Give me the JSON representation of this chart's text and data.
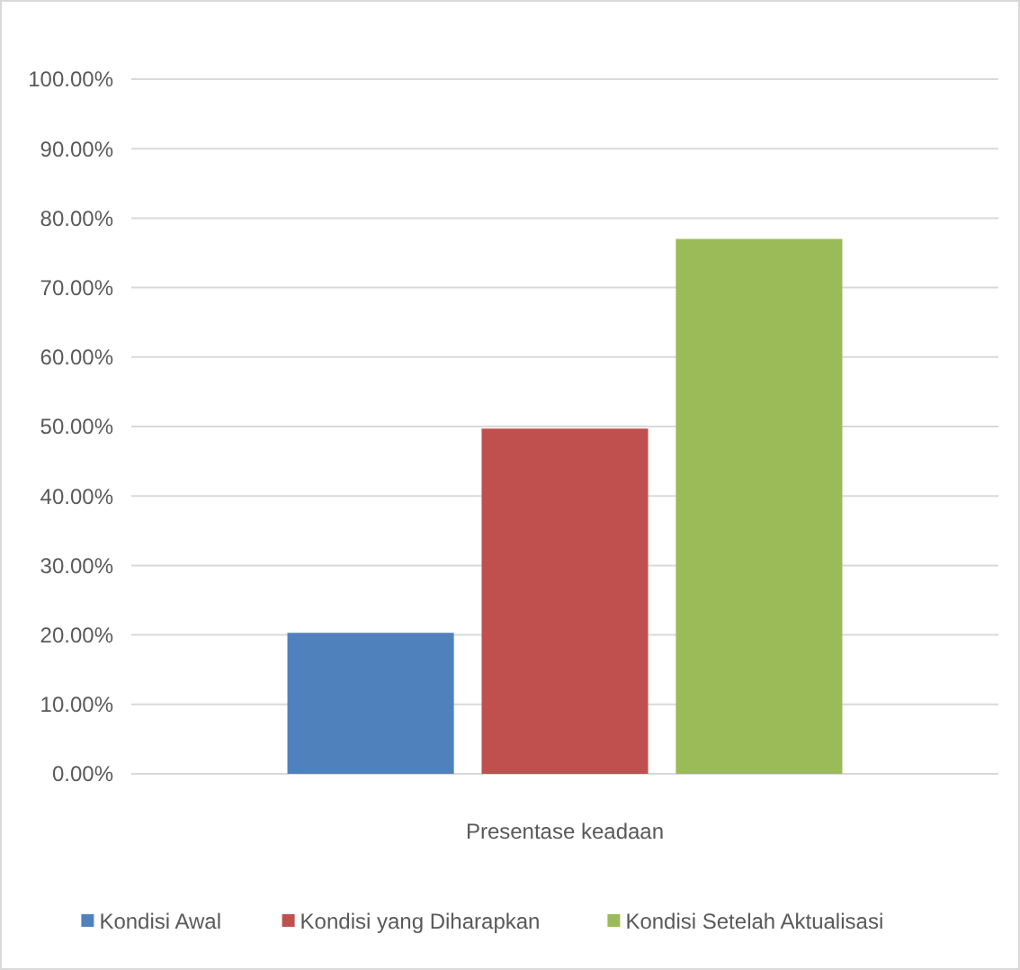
{
  "chart_data": {
    "type": "bar",
    "categories": [
      "Presentase keadaan"
    ],
    "series": [
      {
        "name": "Kondisi Awal",
        "color": "#4f81bd",
        "values": [
          20.3
        ]
      },
      {
        "name": "Kondisi yang Diharapkan",
        "color": "#c0504d",
        "values": [
          49.7
        ]
      },
      {
        "name": "Kondisi Setelah Aktualisasi",
        "color": "#9bbb59",
        "values": [
          77
        ]
      }
    ],
    "ylim": [
      0,
      100
    ],
    "yticks": [
      {
        "value": 0,
        "label": "0.00%"
      },
      {
        "value": 10,
        "label": "10.00%"
      },
      {
        "value": 20,
        "label": "20.00%"
      },
      {
        "value": 30,
        "label": "30.00%"
      },
      {
        "value": 40,
        "label": "40.00%"
      },
      {
        "value": 50,
        "label": "50.00%"
      },
      {
        "value": 60,
        "label": "60.00%"
      },
      {
        "value": 70,
        "label": "70.00%"
      },
      {
        "value": 80,
        "label": "80.00%"
      },
      {
        "value": 90,
        "label": "90.00%"
      },
      {
        "value": 100,
        "label": "100.00%"
      }
    ],
    "grid": "y",
    "legend": "bottom"
  }
}
